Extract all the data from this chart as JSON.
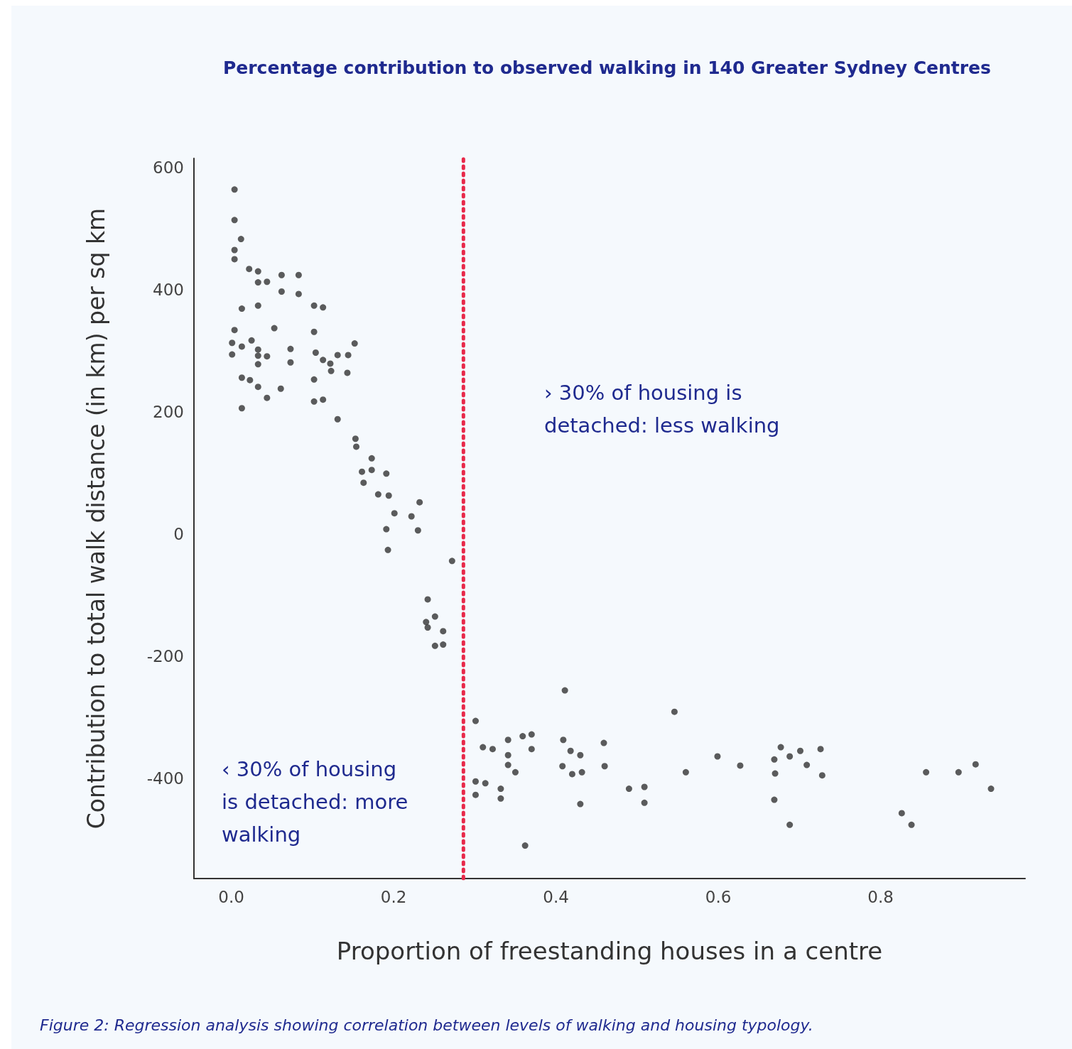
{
  "chart_data": {
    "type": "scatter",
    "title": "Percentage contribution to observed walking in 140 Greater Sydney Centres",
    "xlabel": "Proportion of freestanding houses in a centre",
    "ylabel": "Contribution to total walk distance (in km) per sq km",
    "annotations": [
      "› 30% of housing is detached: less walking",
      "‹ 30% of housing is detached: more walking",
      "Figure 2: Regression analysis showing correlation between levels of walking and housing typology."
    ],
    "color": "#333333",
    "marker": "circle",
    "grid": false,
    "xlim": [
      -0.046,
      0.978
    ],
    "ylim": [
      -564,
      615
    ],
    "xticks": [
      {
        "value": 0,
        "label": "0.0"
      },
      0.2,
      0.4,
      0.6,
      0.8
    ],
    "yticks": [
      -400,
      -200,
      0,
      200,
      400,
      600
    ],
    "ref_lines": [
      {
        "axis": "x",
        "value": 0.286,
        "label": null,
        "color": "#e8294a",
        "line_style": "dotted"
      }
    ],
    "x": [
      0.004,
      0.004,
      0.012,
      0.004,
      0.004,
      0.022,
      0.033,
      0.033,
      0.044,
      0.062,
      0.083,
      0.062,
      0.083,
      0.013,
      0.033,
      0.102,
      0.113,
      0.004,
      0.053,
      0.102,
      0.001,
      0.013,
      0.025,
      0.033,
      0.073,
      0.104,
      0.001,
      0.033,
      0.044,
      0.073,
      0.113,
      0.122,
      0.033,
      0.123,
      0.143,
      0.152,
      0.131,
      0.144,
      0.013,
      0.023,
      0.033,
      0.102,
      0.061,
      0.044,
      0.102,
      0.113,
      0.013,
      0.131,
      0.153,
      0.154,
      0.173,
      0.161,
      0.173,
      0.191,
      0.163,
      0.181,
      0.194,
      0.232,
      0.201,
      0.222,
      0.191,
      0.23,
      0.193,
      0.272,
      0.242,
      0.251,
      0.24,
      0.242,
      0.261,
      0.251,
      0.261,
      0.411,
      0.301,
      0.31,
      0.322,
      0.341,
      0.359,
      0.37,
      0.37,
      0.341,
      0.341,
      0.35,
      0.409,
      0.418,
      0.43,
      0.408,
      0.42,
      0.432,
      0.459,
      0.46,
      0.301,
      0.313,
      0.301,
      0.332,
      0.332,
      0.43,
      0.49,
      0.509,
      0.509,
      0.362,
      0.546,
      0.56,
      0.599,
      0.627,
      0.669,
      0.677,
      0.688,
      0.701,
      0.726,
      0.709,
      0.67,
      0.728,
      0.669,
      0.688,
      0.826,
      0.838,
      0.856,
      0.896,
      0.917,
      0.936
    ],
    "values": [
      564,
      514,
      483,
      465,
      450,
      434,
      430,
      412,
      413,
      424,
      424,
      397,
      393,
      369,
      374,
      374,
      371,
      334,
      337,
      331,
      313,
      307,
      317,
      302,
      303,
      297,
      294,
      292,
      291,
      281,
      285,
      279,
      278,
      267,
      264,
      312,
      293,
      293,
      256,
      252,
      241,
      253,
      238,
      223,
      217,
      220,
      206,
      188,
      156,
      143,
      124,
      102,
      105,
      99,
      84,
      65,
      63,
      52,
      34,
      29,
      8,
      6,
      -26,
      -44,
      -107,
      -135,
      -144,
      -153,
      -159,
      -183,
      -181,
      -256,
      -306,
      -349,
      -352,
      -337,
      -331,
      -328,
      -352,
      -362,
      -378,
      -390,
      -337,
      -355,
      -362,
      -380,
      -393,
      -390,
      -342,
      -380,
      -405,
      -408,
      -427,
      -417,
      -433,
      -442,
      -417,
      -414,
      -440,
      -510,
      -291,
      -390,
      -364,
      -379,
      -369,
      -349,
      -364,
      -355,
      -352,
      -378,
      -392,
      -395,
      -435,
      -476,
      -457,
      -476,
      -390,
      -390,
      -377,
      -417
    ]
  }
}
